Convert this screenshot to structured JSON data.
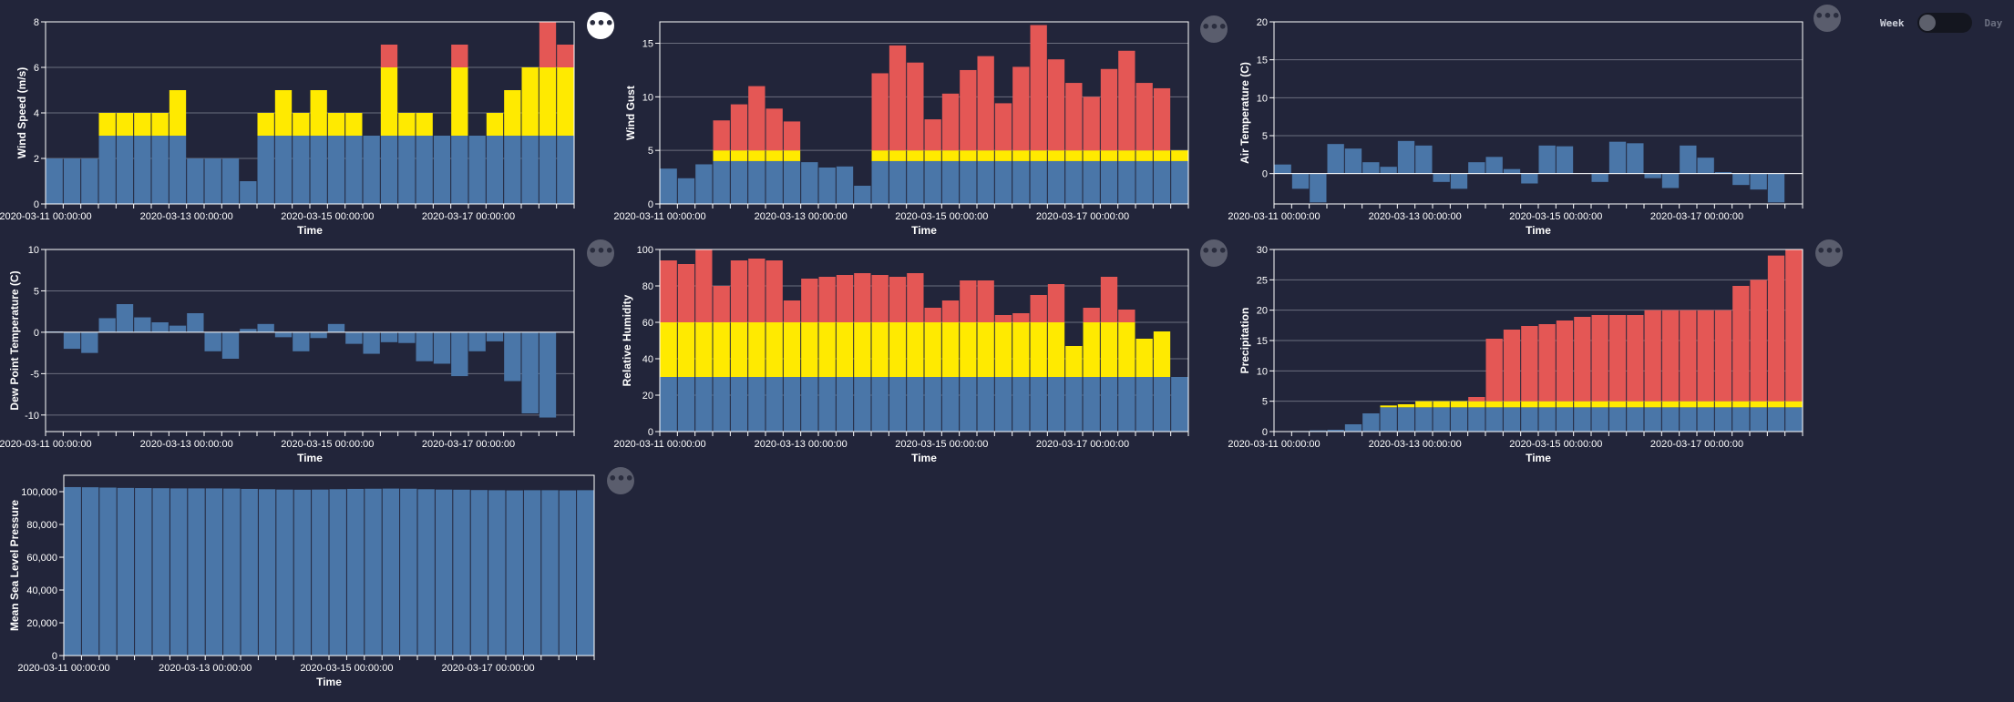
{
  "colors": {
    "blue": "#4a76a8",
    "yellow": "#ffea00",
    "red": "#e45755",
    "background": "#22253a"
  },
  "toggle": {
    "left_label": "Week",
    "right_label": "Day",
    "state": "Week"
  },
  "icons": {
    "menu": "more-horizontal-icon"
  },
  "chart_data": [
    {
      "id": "wind_speed",
      "type": "bar",
      "stacked": true,
      "xlabel": "Time",
      "ylabel": "Wind Speed (m/s)",
      "ylim": [
        0,
        8
      ],
      "yticks": [
        0,
        2,
        4,
        6,
        8
      ],
      "xtick_labels": [
        "2020-03-11 00:00:00",
        "2020-03-13 00:00:00",
        "2020-03-15 00:00:00",
        "2020-03-17 00:00:00"
      ],
      "grid": true,
      "series": [
        {
          "color": "blue",
          "values": [
            2,
            2,
            2,
            3,
            3,
            3,
            3,
            3,
            2,
            2,
            2,
            1,
            3,
            3,
            3,
            3,
            3,
            3,
            3,
            3,
            3,
            3,
            3,
            3,
            3,
            3,
            3,
            3,
            3,
            3
          ]
        },
        {
          "color": "yellow",
          "values": [
            0,
            0,
            0,
            1,
            1,
            1,
            1,
            2,
            0,
            0,
            0,
            0,
            1,
            2,
            1,
            2,
            1,
            1,
            0,
            3,
            1,
            1,
            0,
            3,
            0,
            1,
            2,
            3,
            3,
            3
          ]
        },
        {
          "color": "red",
          "values": [
            0,
            0,
            0,
            0,
            0,
            0,
            0,
            0,
            0,
            0,
            0,
            0,
            0,
            0,
            0,
            0,
            0,
            0,
            0,
            1,
            0,
            0,
            0,
            1,
            0,
            0,
            0,
            0,
            2,
            1
          ]
        }
      ]
    },
    {
      "id": "wind_gust",
      "type": "bar",
      "stacked": true,
      "xlabel": "Time",
      "ylabel": "Wind Gust",
      "ylim": [
        0,
        17
      ],
      "yticks": [
        0,
        5,
        10,
        15
      ],
      "xtick_labels": [
        "2020-03-11 00:00:00",
        "2020-03-13 00:00:00",
        "2020-03-15 00:00:00",
        "2020-03-17 00:00:00"
      ],
      "grid": true,
      "series": [
        {
          "color": "blue",
          "values": [
            3.3,
            2.4,
            3.7,
            4,
            4,
            4,
            4,
            4,
            3.9,
            3.4,
            3.5,
            1.7,
            4,
            4,
            4,
            4,
            4,
            4,
            4,
            4,
            4,
            4,
            4,
            4,
            4,
            4,
            4,
            4,
            4,
            4
          ]
        },
        {
          "color": "yellow",
          "values": [
            0,
            0,
            0,
            1,
            1,
            1,
            1,
            1,
            0,
            0,
            0,
            0,
            1,
            1,
            1,
            1,
            1,
            1,
            1,
            1,
            1,
            1,
            1,
            1,
            1,
            1,
            1,
            1,
            1,
            1
          ]
        },
        {
          "color": "red",
          "values": [
            0,
            0,
            0,
            2.8,
            4.3,
            6,
            3.9,
            2.7,
            0,
            0,
            0,
            0,
            7.2,
            9.8,
            8.2,
            2.9,
            5.3,
            7.5,
            8.8,
            4.4,
            7.8,
            11.7,
            8.5,
            6.3,
            5,
            7.6,
            9.3,
            6.3,
            5.8,
            0
          ]
        }
      ]
    },
    {
      "id": "air_temperature",
      "type": "bar",
      "stacked": false,
      "xlabel": "Time",
      "ylabel": "Air Temperature (C)",
      "ylim": [
        -4,
        20
      ],
      "yticks": [
        0,
        5,
        10,
        15,
        20
      ],
      "xtick_labels": [
        "2020-03-11 00:00:00",
        "2020-03-13 00:00:00",
        "2020-03-15 00:00:00",
        "2020-03-17 00:00:00"
      ],
      "grid": true,
      "series": [
        {
          "color": "blue",
          "values": [
            1.2,
            -2,
            -3.8,
            3.9,
            3.3,
            1.5,
            0.9,
            4.3,
            3.7,
            -1.1,
            -2,
            1.5,
            2.2,
            0.6,
            -1.3,
            3.7,
            3.6,
            0,
            -1.1,
            4.2,
            4,
            -0.6,
            -1.9,
            3.7,
            2.1,
            0.2,
            -1.5,
            -2.1,
            -3.8,
            0
          ]
        }
      ]
    },
    {
      "id": "dew_point",
      "type": "bar",
      "stacked": false,
      "xlabel": "Time",
      "ylabel": "Dew Point Temperature (C)",
      "ylim": [
        -12,
        10
      ],
      "yticks": [
        -10,
        -5,
        0,
        5,
        10
      ],
      "xtick_labels": [
        "2020-03-11 00:00:00",
        "2020-03-13 00:00:00",
        "2020-03-15 00:00:00",
        "2020-03-17 00:00:00"
      ],
      "grid": true,
      "series": [
        {
          "color": "blue",
          "values": [
            0.1,
            -2,
            -2.5,
            1.7,
            3.4,
            1.8,
            1.2,
            0.8,
            2.3,
            -2.3,
            -3.2,
            0.4,
            1,
            -0.6,
            -2.3,
            -0.7,
            1,
            -1.4,
            -2.6,
            -1.2,
            -1.3,
            -3.5,
            -3.8,
            -5.3,
            -2.3,
            -1.1,
            -5.9,
            -9.8,
            -10.3,
            0
          ]
        }
      ]
    },
    {
      "id": "relative_humidity",
      "type": "bar",
      "stacked": true,
      "xlabel": "Time",
      "ylabel": "Relative Humidity",
      "ylim": [
        0,
        100
      ],
      "yticks": [
        0,
        20,
        40,
        60,
        80,
        100
      ],
      "xtick_labels": [
        "2020-03-11 00:00:00",
        "2020-03-13 00:00:00",
        "2020-03-15 00:00:00",
        "2020-03-17 00:00:00"
      ],
      "grid": true,
      "series": [
        {
          "color": "blue",
          "values": [
            30,
            30,
            30,
            30,
            30,
            30,
            30,
            30,
            30,
            30,
            30,
            30,
            30,
            30,
            30,
            30,
            30,
            30,
            30,
            30,
            30,
            30,
            30,
            30,
            30,
            30,
            30,
            30,
            30,
            30
          ]
        },
        {
          "color": "yellow",
          "values": [
            30,
            30,
            30,
            30,
            30,
            30,
            30,
            30,
            30,
            30,
            30,
            30,
            30,
            30,
            30,
            30,
            30,
            30,
            30,
            30,
            30,
            30,
            30,
            17,
            30,
            30,
            30,
            21,
            25,
            0
          ]
        },
        {
          "color": "red",
          "values": [
            34,
            32,
            40,
            20,
            34,
            35,
            34,
            12,
            24,
            25,
            26,
            27,
            26,
            25,
            27,
            8,
            12,
            23,
            23,
            4,
            5,
            15,
            21,
            0,
            8,
            25,
            7,
            0,
            0,
            0
          ]
        }
      ]
    },
    {
      "id": "precipitation",
      "type": "bar",
      "stacked": true,
      "xlabel": "Time",
      "ylabel": "Precipitation",
      "ylim": [
        0,
        30
      ],
      "yticks": [
        0,
        5,
        10,
        15,
        20,
        25,
        30
      ],
      "xtick_labels": [
        "2020-03-11 00:00:00",
        "2020-03-13 00:00:00",
        "2020-03-15 00:00:00",
        "2020-03-17 00:00:00"
      ],
      "grid": true,
      "series": [
        {
          "color": "blue",
          "values": [
            0,
            0.1,
            0.2,
            0.3,
            1.2,
            3,
            4,
            4,
            4,
            4,
            4,
            4,
            4,
            4,
            4,
            4,
            4,
            4,
            4,
            4,
            4,
            4,
            4,
            4,
            4,
            4,
            4,
            4,
            4,
            4
          ]
        },
        {
          "color": "yellow",
          "values": [
            0,
            0,
            0,
            0,
            0,
            0,
            0.3,
            0.5,
            1,
            1,
            1,
            1,
            1,
            1,
            1,
            1,
            1,
            1,
            1,
            1,
            1,
            1,
            1,
            1,
            1,
            1,
            1,
            1,
            1,
            1
          ]
        },
        {
          "color": "red",
          "values": [
            0,
            0,
            0,
            0,
            0,
            0,
            0,
            0,
            0,
            0,
            0,
            0.7,
            10.3,
            11.8,
            12.4,
            12.7,
            13.3,
            13.9,
            14.2,
            14.2,
            14.2,
            15,
            15,
            15,
            15,
            15,
            19,
            20,
            24,
            25
          ]
        }
      ]
    },
    {
      "id": "mslp",
      "type": "bar",
      "stacked": false,
      "xlabel": "Time",
      "ylabel": "Mean Sea Level Pressure",
      "ylim": [
        0,
        110000
      ],
      "yticks": [
        0,
        20000,
        40000,
        60000,
        80000,
        100000
      ],
      "ytick_labels": [
        "0",
        "20,000",
        "40,000",
        "60,000",
        "80,000",
        "100,000"
      ],
      "xtick_labels": [
        "2020-03-11 00:00:00",
        "2020-03-13 00:00:00",
        "2020-03-15 00:00:00",
        "2020-03-17 00:00:00"
      ],
      "grid": false,
      "series": [
        {
          "color": "blue",
          "values": [
            102800,
            102700,
            102500,
            102300,
            102200,
            102100,
            102000,
            102000,
            102000,
            101900,
            101700,
            101500,
            101300,
            101200,
            101300,
            101500,
            101700,
            101800,
            101900,
            101800,
            101500,
            101300,
            101200,
            101000,
            100900,
            100800,
            100900,
            100900,
            100800,
            100900
          ]
        }
      ]
    }
  ]
}
